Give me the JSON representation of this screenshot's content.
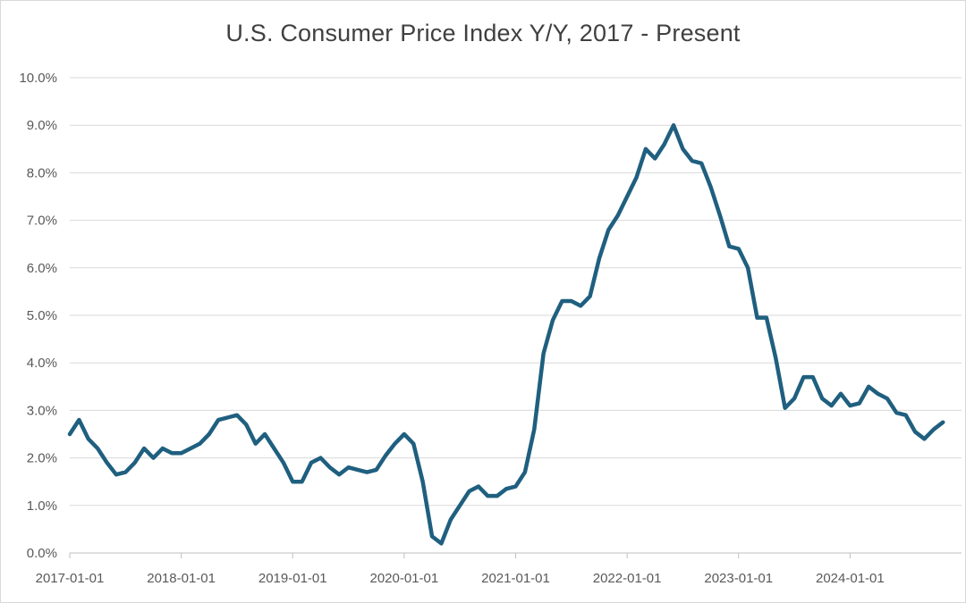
{
  "chart_data": {
    "type": "line",
    "title": "U.S. Consumer Price Index Y/Y, 2017 - Present",
    "xlabel": "",
    "ylabel": "",
    "ylim": [
      0,
      10
    ],
    "y_ticks": [
      "0.0%",
      "1.0%",
      "2.0%",
      "3.0%",
      "4.0%",
      "5.0%",
      "6.0%",
      "7.0%",
      "8.0%",
      "9.0%",
      "10.0%"
    ],
    "x_ticks": [
      "2017-01-01",
      "2018-01-01",
      "2019-01-01",
      "2020-01-01",
      "2021-01-01",
      "2022-01-01",
      "2023-01-01",
      "2024-01-01"
    ],
    "grid": true,
    "legend": "none",
    "line_color": "#1f5f7f",
    "series": [
      {
        "start": "2017-01",
        "values": [
          2.5,
          2.8,
          2.4,
          2.2,
          1.9,
          1.65,
          1.7,
          1.9,
          2.2,
          2.0,
          2.2,
          2.1,
          2.1,
          2.2,
          2.3,
          2.5,
          2.8,
          2.85,
          2.9,
          2.7,
          2.3,
          2.5,
          2.2,
          1.9,
          1.5,
          1.5,
          1.9,
          2.0,
          1.8,
          1.65,
          1.8,
          1.75,
          1.7,
          1.75,
          2.05,
          2.3,
          2.5,
          2.3,
          1.5,
          0.35,
          0.2,
          0.7,
          1.0,
          1.3,
          1.4,
          1.2,
          1.2,
          1.35,
          1.4,
          1.7,
          2.6,
          4.2,
          4.9,
          5.3,
          5.3,
          5.2,
          5.4,
          6.2,
          6.8,
          7.1,
          7.5,
          7.9,
          8.5,
          8.3,
          8.6,
          9.0,
          8.5,
          8.25,
          8.2,
          7.7,
          7.1,
          6.45,
          6.4,
          6.0,
          4.95,
          4.95,
          4.1,
          3.05,
          3.25,
          3.7,
          3.7,
          3.25,
          3.1,
          3.35,
          3.1,
          3.15,
          3.5,
          3.35,
          3.25,
          2.95,
          2.9,
          2.55,
          2.4,
          2.6,
          2.75
        ]
      }
    ]
  }
}
